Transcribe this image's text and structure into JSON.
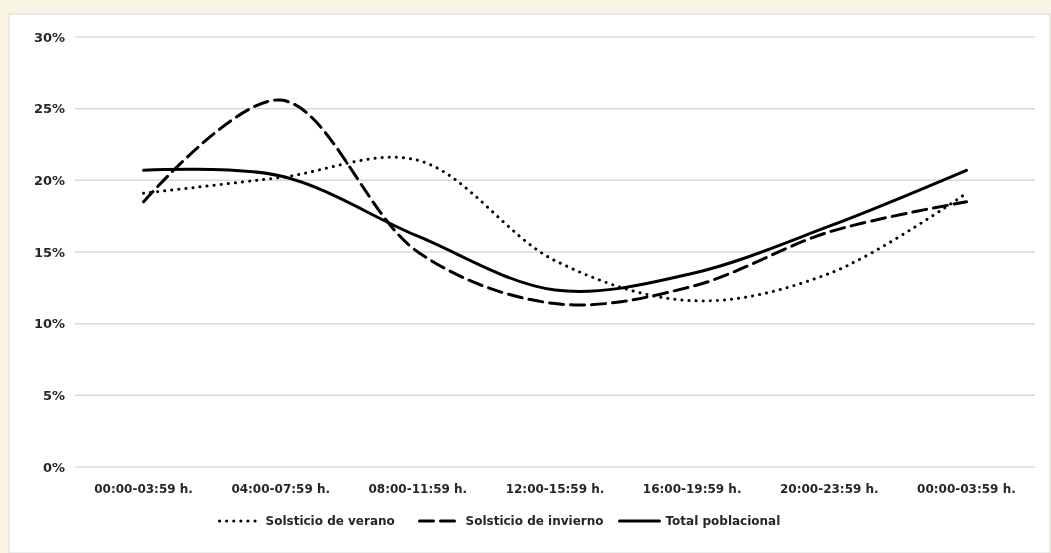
{
  "chart_data": {
    "type": "line",
    "categories": [
      "00:00-03:59 h.",
      "04:00-07:59 h.",
      "08:00-11:59 h.",
      "12:00-15:59 h.",
      "16:00-19:59 h.",
      "20:00-23:59 h.",
      "00:00-03:59 h."
    ],
    "series": [
      {
        "name": "Solsticio de verano",
        "color": "#000000",
        "line_style": "dotted",
        "values": [
          19.1,
          20.2,
          21.4,
          14.4,
          11.6,
          13.5,
          19.1
        ]
      },
      {
        "name": "Solsticio de invierno",
        "color": "#000000",
        "line_style": "dashed",
        "values": [
          18.5,
          25.6,
          15.0,
          11.4,
          12.6,
          16.4,
          18.5
        ]
      },
      {
        "name": "Total poblacional",
        "color": "#000000",
        "line_style": "solid",
        "values": [
          20.7,
          20.3,
          16.1,
          12.35,
          13.5,
          16.8,
          20.7
        ]
      }
    ],
    "ylim": [
      0,
      30
    ],
    "yticks": [
      {
        "value": 0,
        "label": "0%"
      },
      {
        "value": 5,
        "label": "5%"
      },
      {
        "value": 10,
        "label": "10%"
      },
      {
        "value": 15,
        "label": "15%"
      },
      {
        "value": 20,
        "label": "20%"
      },
      {
        "value": 25,
        "label": "25%"
      },
      {
        "value": 30,
        "label": "30%"
      }
    ],
    "grid": "y",
    "legend": "bottom",
    "marker": "none"
  }
}
